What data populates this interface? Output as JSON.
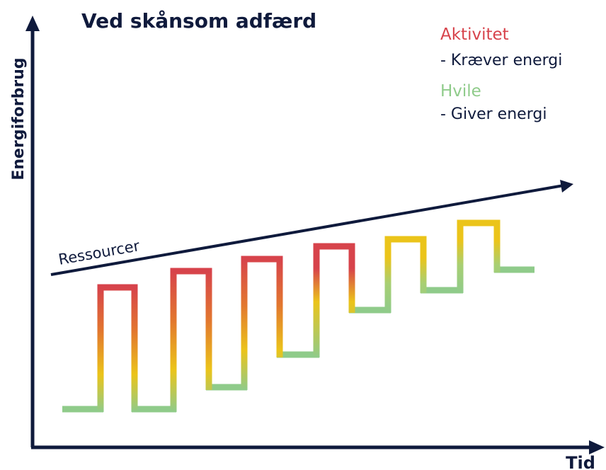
{
  "header": {
    "title": "Ved skånsom adfærd"
  },
  "axes": {
    "y_label": "Energiforbrug",
    "x_label": "Tid"
  },
  "legend": [
    {
      "label": "Aktivitet",
      "description": "- Kræver energi"
    },
    {
      "label": "Hvile",
      "description": "- Giver energi"
    }
  ],
  "trend": {
    "label": "Ressourcer"
  }
}
